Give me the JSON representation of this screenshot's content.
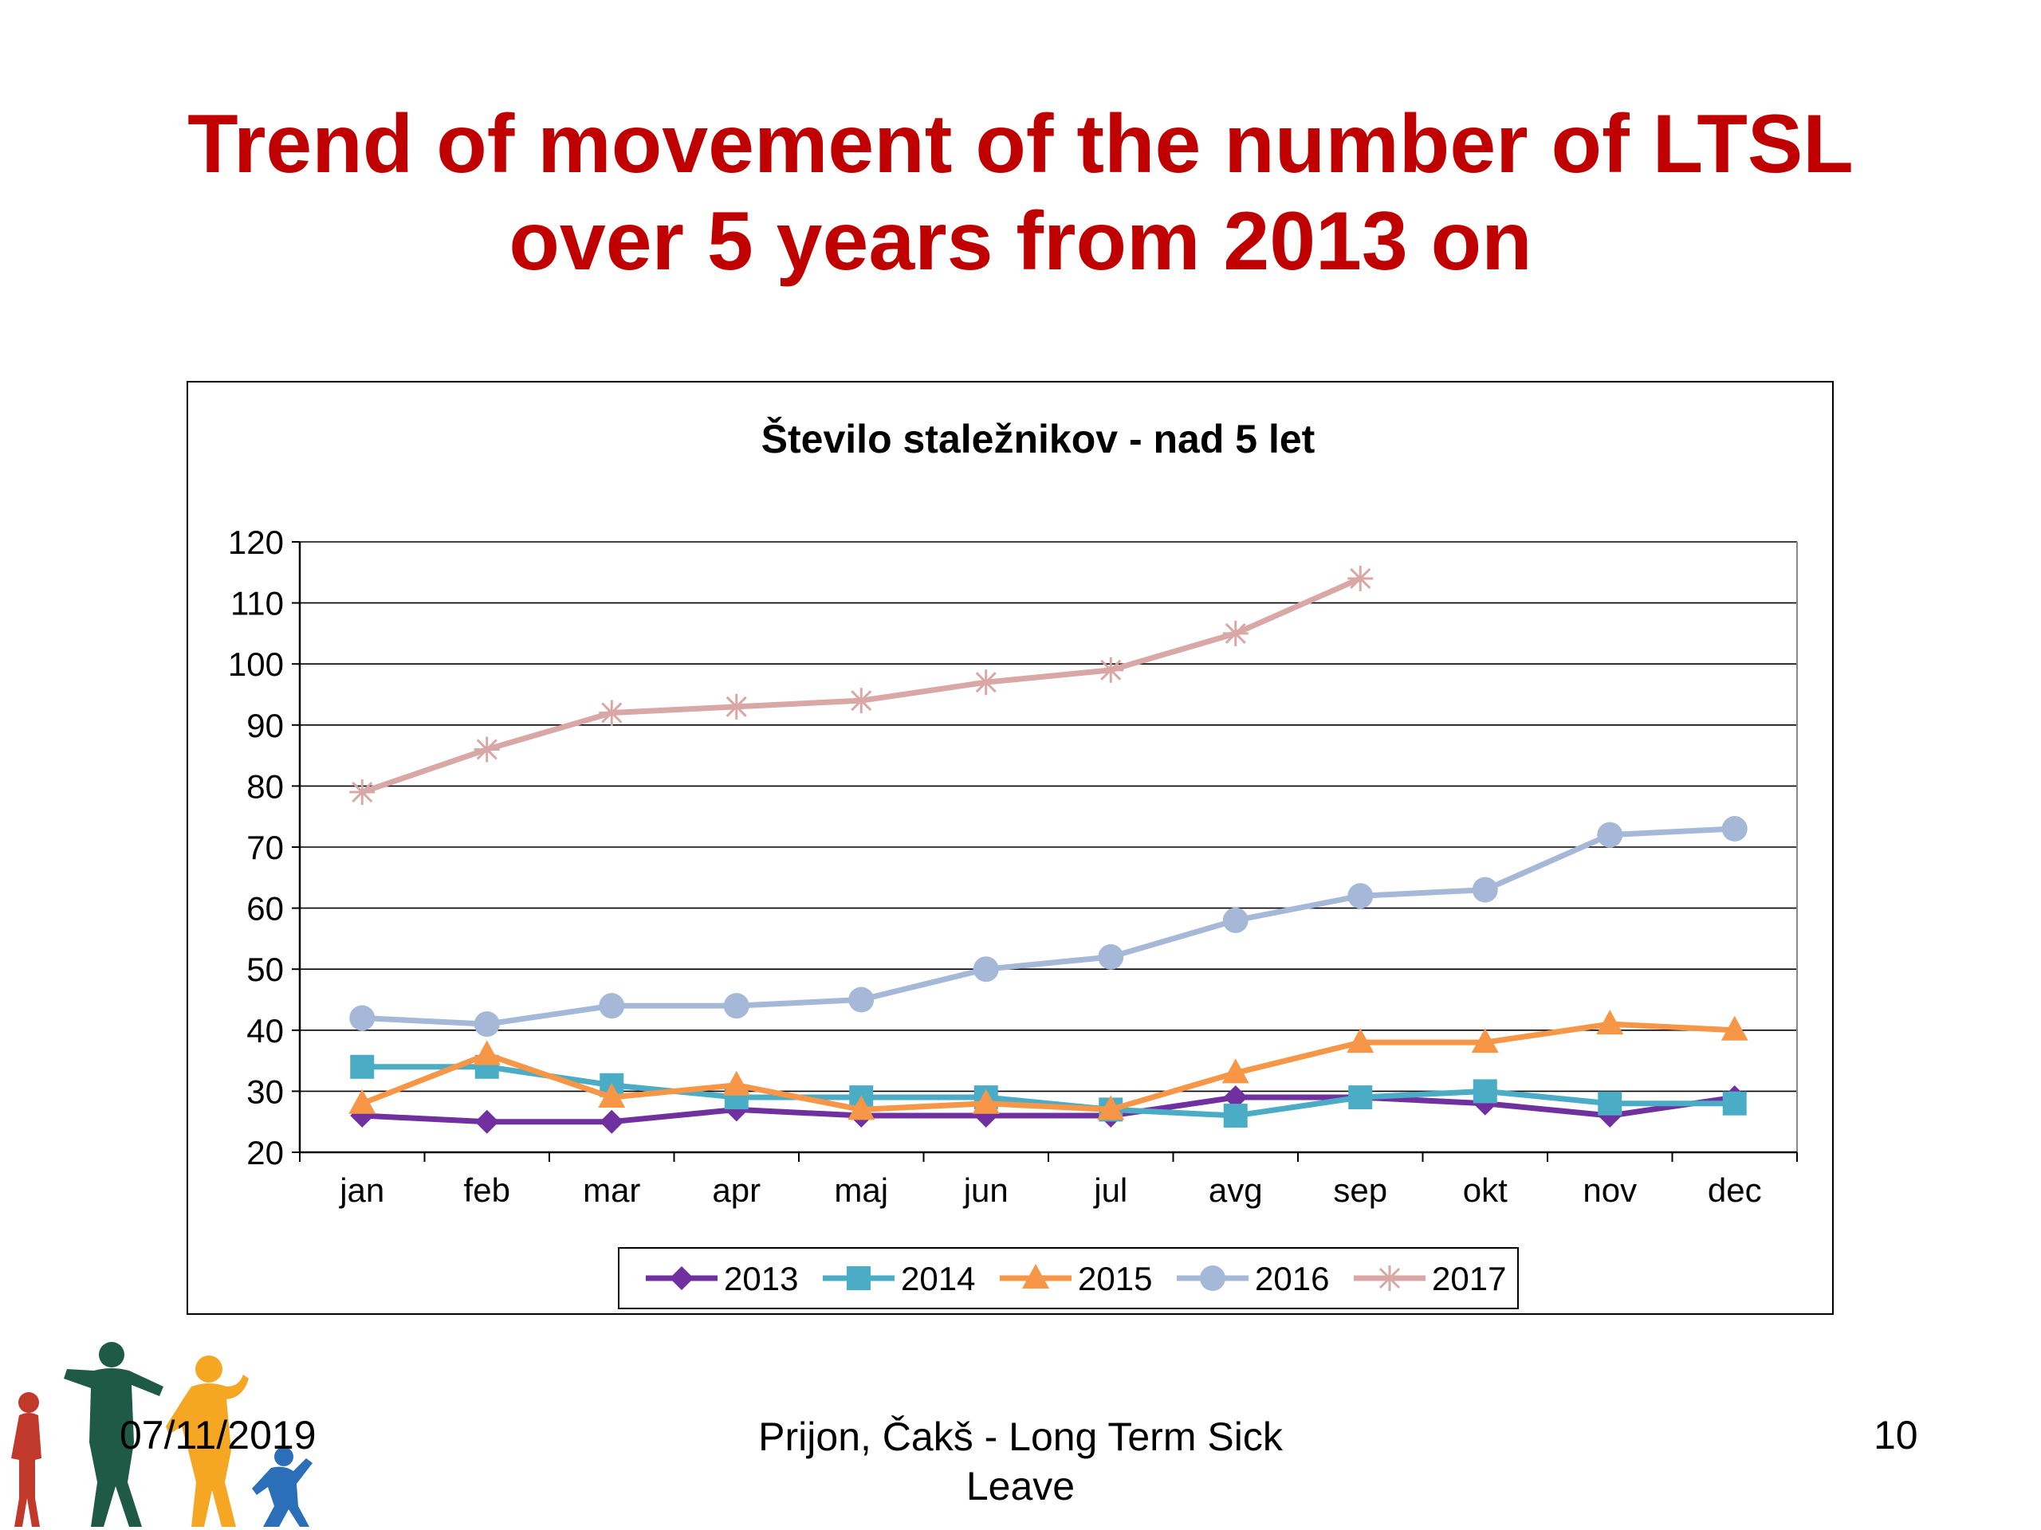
{
  "slide": {
    "title_line1": "Trend of movement of the number of LTSL",
    "title_line2": "over 5 years from 2013 on"
  },
  "footer": {
    "date": "07/11/2019",
    "center": "Prijon, Čakš - Long Term Sick Leave",
    "page": "10"
  },
  "chart_data": {
    "type": "line",
    "title": "Število staležnikov - nad 5 let",
    "xlabel": "",
    "ylabel": "",
    "ylim": [
      20,
      120
    ],
    "yticks": [
      20,
      30,
      40,
      50,
      60,
      70,
      80,
      90,
      100,
      110,
      120
    ],
    "grid": true,
    "legend_position": "bottom",
    "categories": [
      "jan",
      "feb",
      "mar",
      "apr",
      "maj",
      "jun",
      "jul",
      "avg",
      "sep",
      "okt",
      "nov",
      "dec"
    ],
    "series": [
      {
        "name": "2013",
        "color": "#7030a0",
        "marker": "diamond",
        "values": [
          26,
          25,
          25,
          27,
          26,
          26,
          26,
          29,
          29,
          28,
          26,
          29
        ]
      },
      {
        "name": "2014",
        "color": "#4bacc6",
        "marker": "square",
        "values": [
          34,
          34,
          31,
          29,
          29,
          29,
          27,
          26,
          29,
          30,
          28,
          28
        ]
      },
      {
        "name": "2015",
        "color": "#f79646",
        "marker": "triangle",
        "values": [
          28,
          36,
          29,
          31,
          27,
          28,
          27,
          33,
          38,
          38,
          41,
          40
        ]
      },
      {
        "name": "2016",
        "color": "#a6b8d8",
        "marker": "circle",
        "values": [
          42,
          41,
          44,
          44,
          45,
          50,
          52,
          58,
          62,
          63,
          72,
          73
        ]
      },
      {
        "name": "2017",
        "color": "#d9a7a5",
        "marker": "star",
        "values": [
          79,
          86,
          92,
          93,
          94,
          97,
          99,
          105,
          114,
          null,
          null,
          null
        ]
      }
    ]
  }
}
